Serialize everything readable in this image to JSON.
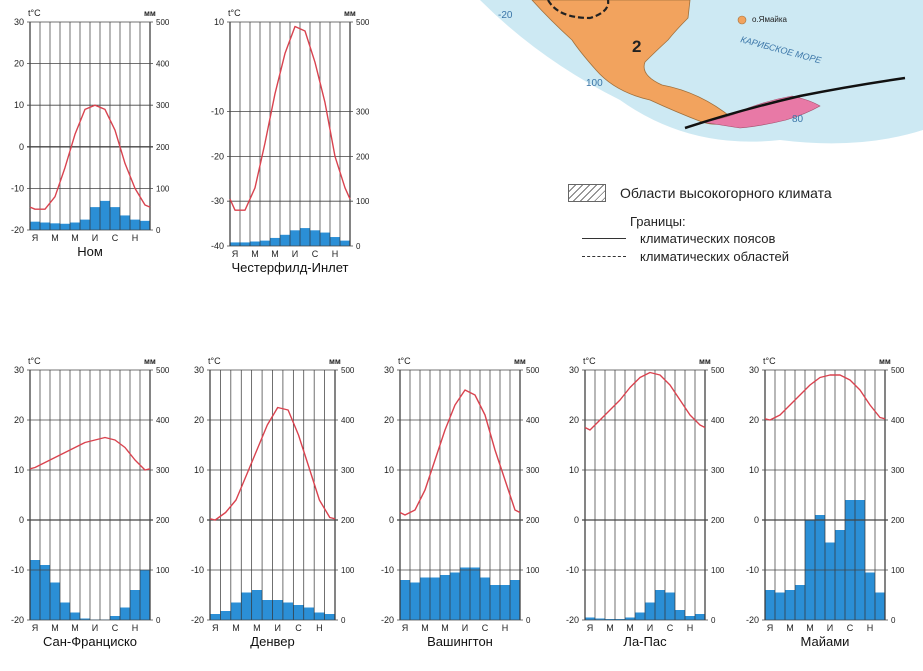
{
  "map": {
    "label_lat": "-20",
    "label_lon": "100",
    "label_lon2": "80",
    "zone_number": "2",
    "label_jamaica": "о.Ямайка",
    "label_sea": "КАРИБСКОЕ МОРЕ",
    "colors": {
      "land": "#f2a35e",
      "sea": "#cde9f3",
      "south": "#e879a6"
    }
  },
  "legend": {
    "highland": "Области высокогорного климата",
    "borders_title": "Границы:",
    "climate_belts": "климатических поясов",
    "climate_regions": "климатических областей"
  },
  "chart_units": {
    "temp": "t°C",
    "precip": "мм"
  },
  "colors": {
    "temp_line": "#d9434f",
    "bars": "#2b8fd6",
    "grid": "#7a7a7a"
  },
  "chart_data": [
    {
      "type": "bar+line",
      "title": "Ном",
      "months": [
        "Я",
        "",
        "М",
        "",
        "М",
        "",
        "И",
        "",
        "С",
        "",
        "Н",
        ""
      ],
      "month_labels": [
        "Я",
        "М",
        "М",
        "И",
        "С",
        "Н"
      ],
      "temperature": [
        -15,
        -15,
        -12,
        -5,
        3,
        9,
        10,
        9,
        4,
        -4,
        -10,
        -14
      ],
      "precipitation": [
        20,
        18,
        16,
        15,
        18,
        25,
        55,
        70,
        55,
        35,
        25,
        22
      ],
      "temp_range": [
        -20,
        30
      ],
      "temp_ticks": [
        30,
        20,
        10,
        0,
        -10,
        -20
      ],
      "precip_range": [
        0,
        500
      ],
      "precip_ticks": [
        500,
        400,
        300,
        200,
        100,
        0
      ]
    },
    {
      "type": "bar+line",
      "title": "Честерфилд-Инлет",
      "month_labels": [
        "Я",
        "М",
        "М",
        "И",
        "С",
        "Н"
      ],
      "temperature": [
        -32,
        -32,
        -27,
        -17,
        -6,
        3,
        9,
        8,
        1,
        -8,
        -20,
        -27
      ],
      "precipitation": [
        8,
        8,
        10,
        12,
        18,
        25,
        35,
        40,
        35,
        30,
        20,
        12
      ],
      "temp_range": [
        -40,
        10
      ],
      "temp_ticks": [
        10,
        -10,
        -20,
        -30,
        -40
      ],
      "precip_range": [
        0,
        500
      ],
      "precip_ticks": [
        500,
        300,
        200,
        100,
        0
      ]
    },
    {
      "type": "bar+line",
      "title": "Сан-Франциско",
      "month_labels": [
        "Я",
        "М",
        "М",
        "И",
        "С",
        "Н"
      ],
      "temperature": [
        10.5,
        11.5,
        12.5,
        13.5,
        14.5,
        15.5,
        16,
        16.5,
        16,
        14.5,
        12,
        10
      ],
      "precipitation": [
        120,
        110,
        75,
        35,
        15,
        3,
        1,
        1,
        8,
        25,
        60,
        100
      ],
      "temp_range": [
        -20,
        30
      ],
      "temp_ticks": [
        30,
        20,
        10,
        0,
        -10,
        -20
      ],
      "precip_range": [
        0,
        500
      ],
      "precip_ticks": [
        500,
        400,
        300,
        200,
        100,
        0
      ]
    },
    {
      "type": "bar+line",
      "title": "Денвер",
      "month_labels": [
        "Я",
        "М",
        "М",
        "И",
        "С",
        "Н"
      ],
      "temperature": [
        0,
        1.5,
        4,
        9,
        14,
        19,
        22.5,
        22,
        17,
        10.5,
        4,
        0.5
      ],
      "precipitation": [
        12,
        18,
        35,
        55,
        60,
        40,
        40,
        35,
        30,
        25,
        15,
        12
      ],
      "temp_range": [
        -20,
        30
      ],
      "temp_ticks": [
        30,
        20,
        10,
        0,
        -10,
        -20
      ],
      "precip_range": [
        0,
        500
      ],
      "precip_ticks": [
        500,
        400,
        300,
        200,
        100,
        0
      ]
    },
    {
      "type": "bar+line",
      "title": "Вашингтон",
      "month_labels": [
        "Я",
        "М",
        "М",
        "И",
        "С",
        "Н"
      ],
      "temperature": [
        1,
        2,
        6,
        12,
        18,
        23,
        26,
        25,
        21,
        14,
        8,
        2
      ],
      "precipitation": [
        80,
        75,
        85,
        85,
        90,
        95,
        105,
        105,
        85,
        70,
        70,
        80
      ],
      "temp_range": [
        -20,
        30
      ],
      "temp_ticks": [
        30,
        20,
        10,
        0,
        -10,
        -20
      ],
      "precip_range": [
        0,
        500
      ],
      "precip_ticks": [
        500,
        400,
        300,
        200,
        100,
        0
      ]
    },
    {
      "type": "bar+line",
      "title": "Ла-Пас",
      "month_labels": [
        "Я",
        "М",
        "М",
        "И",
        "С",
        "Н"
      ],
      "temperature": [
        18,
        20,
        22,
        24,
        26.5,
        28.5,
        29.5,
        29,
        27,
        24,
        21,
        19
      ],
      "precipitation": [
        5,
        3,
        2,
        2,
        5,
        15,
        35,
        60,
        55,
        20,
        8,
        12
      ],
      "temp_range": [
        -20,
        30
      ],
      "temp_ticks": [
        30,
        20,
        10,
        0,
        -10,
        -20
      ],
      "precip_range": [
        0,
        500
      ],
      "precip_ticks": [
        500,
        400,
        300,
        200,
        100,
        0
      ]
    },
    {
      "type": "bar+line",
      "title": "Майами",
      "month_labels": [
        "Я",
        "М",
        "М",
        "И",
        "С",
        "Н"
      ],
      "temperature": [
        20,
        21,
        23,
        25,
        27,
        28.5,
        29,
        29,
        28,
        26,
        23,
        20.5
      ],
      "precipitation": [
        60,
        55,
        60,
        70,
        200,
        210,
        155,
        180,
        240,
        240,
        95,
        55
      ],
      "temp_range": [
        -20,
        30
      ],
      "temp_ticks": [
        30,
        20,
        10,
        0,
        -10,
        -20
      ],
      "precip_range": [
        0,
        500
      ],
      "precip_ticks": [
        500,
        400,
        300,
        200,
        100,
        0
      ]
    }
  ]
}
